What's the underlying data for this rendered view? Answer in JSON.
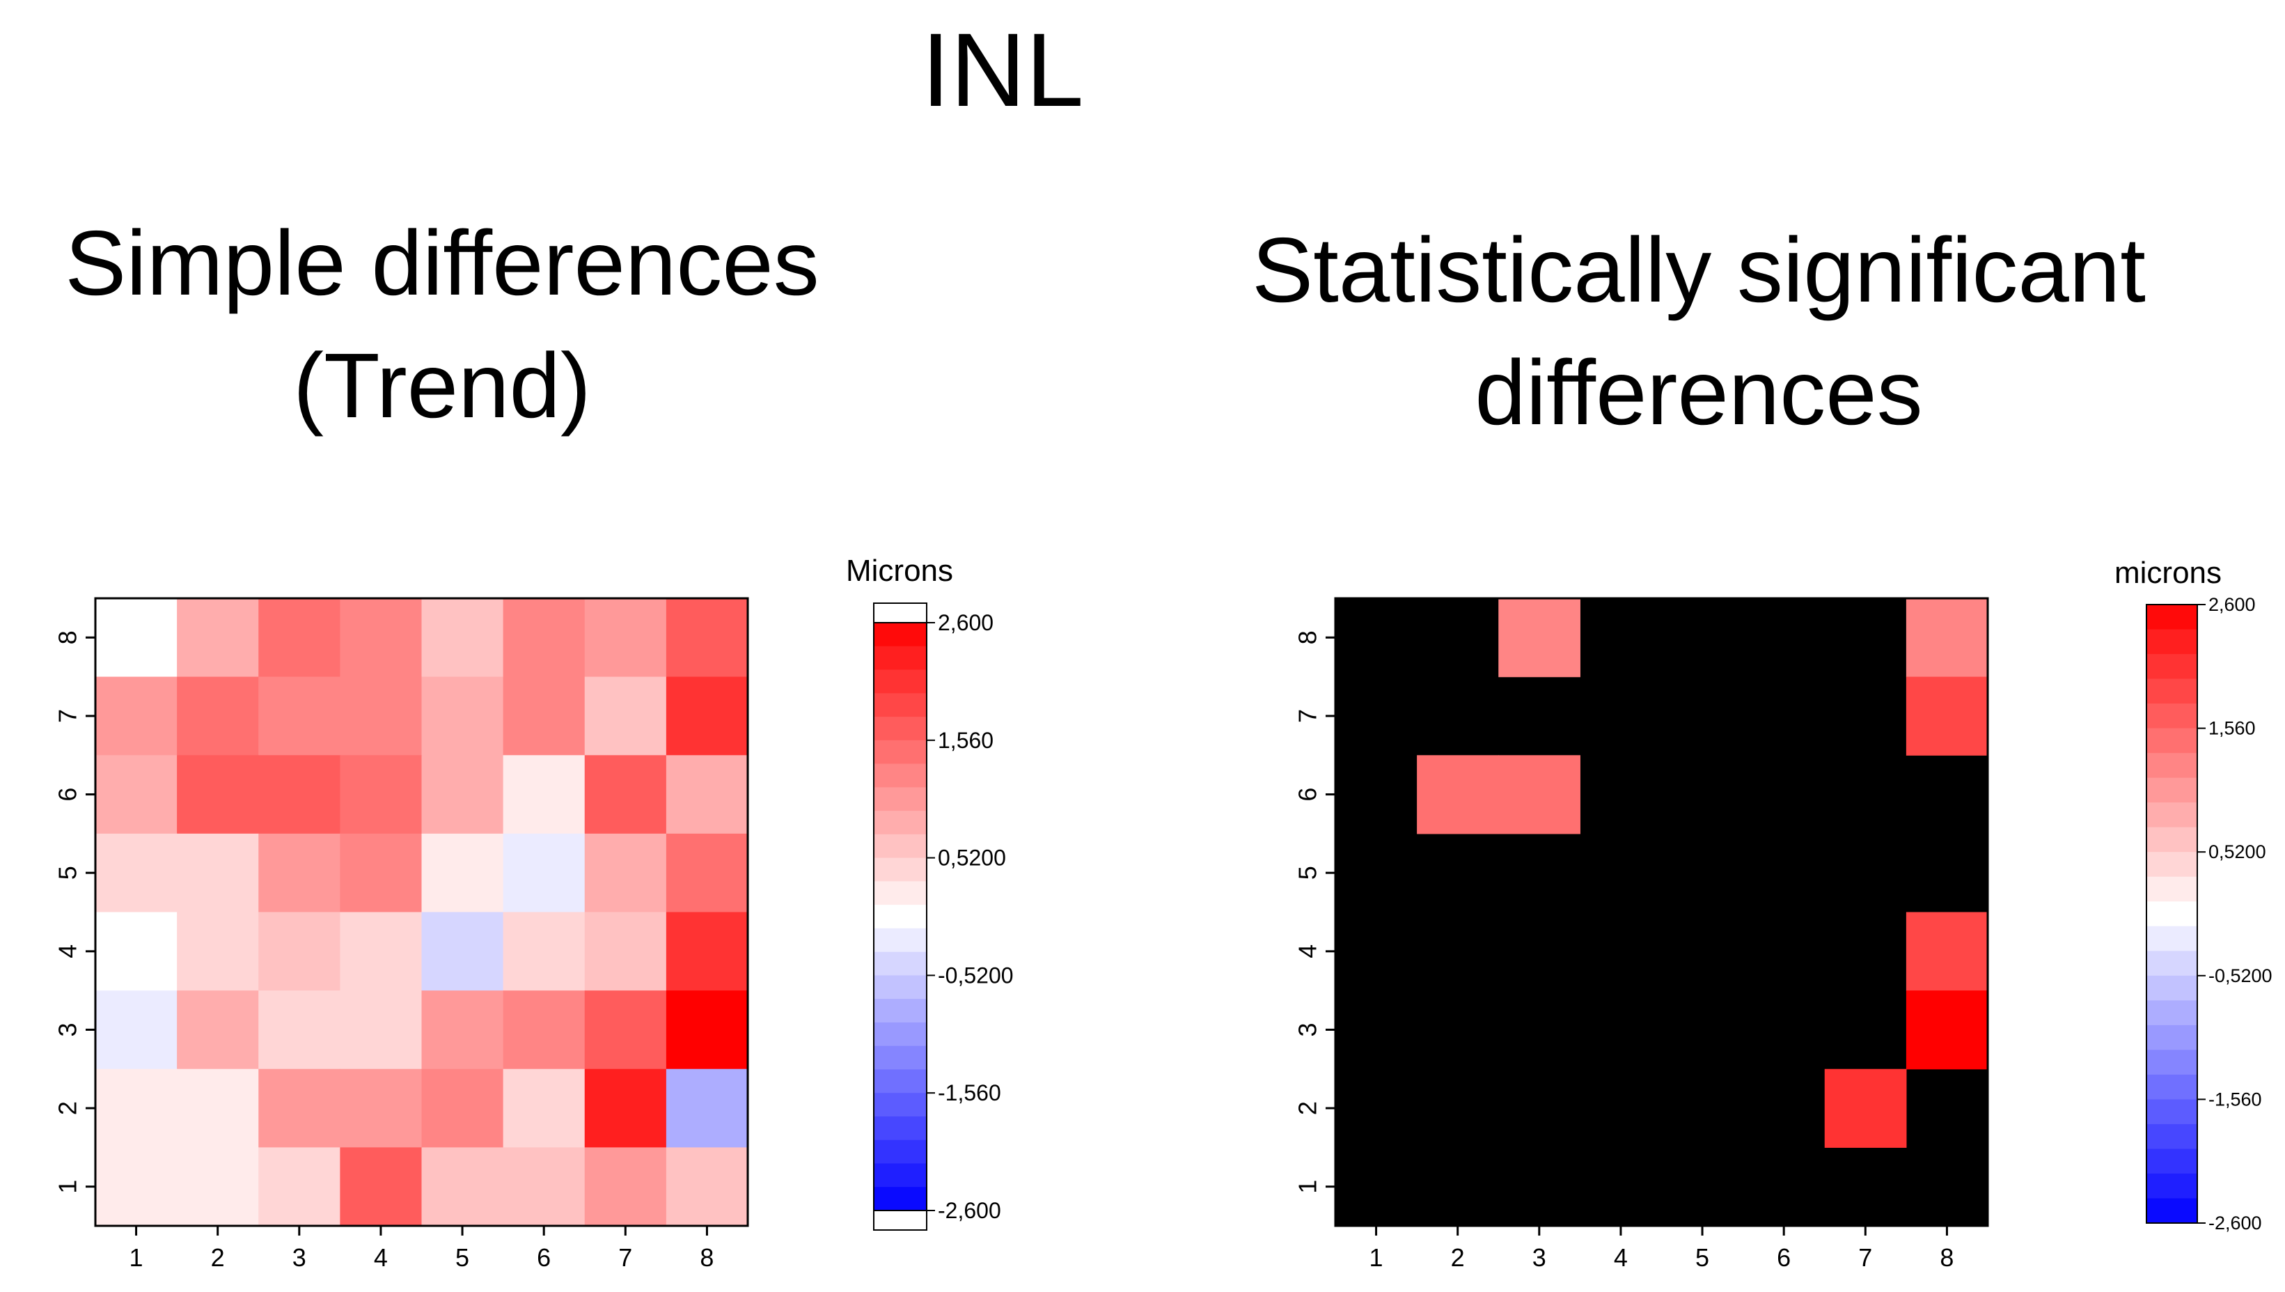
{
  "title": "INL",
  "chart_data": [
    {
      "type": "heatmap",
      "title": "Simple differences (Trend)",
      "title_lines": [
        "Simple differences",
        "(Trend)"
      ],
      "x": [
        1,
        2,
        3,
        4,
        5,
        6,
        7,
        8
      ],
      "y": [
        1,
        2,
        3,
        4,
        5,
        6,
        7,
        8
      ],
      "xlabel": "",
      "ylabel": "",
      "values_rows_top_to_bottom": [
        [
          0.05,
          0.9,
          1.55,
          1.25,
          0.7,
          1.2,
          1.1,
          1.7
        ],
        [
          1.05,
          1.4,
          1.15,
          1.15,
          0.85,
          1.35,
          0.55,
          2.05
        ],
        [
          0.75,
          1.75,
          1.75,
          1.55,
          0.85,
          0.25,
          1.75,
          0.9
        ],
        [
          0.35,
          0.35,
          1.0,
          1.3,
          0.2,
          -0.12,
          0.8,
          1.45
        ],
        [
          0.05,
          0.35,
          0.6,
          0.35,
          -0.4,
          0.45,
          0.7,
          2.1
        ],
        [
          -0.12,
          0.85,
          0.35,
          0.35,
          1.05,
          1.35,
          1.75,
          2.6
        ],
        [
          0.2,
          0.2,
          1.05,
          1.05,
          1.25,
          0.45,
          2.3,
          -0.9
        ],
        [
          0.12,
          0.12,
          0.45,
          1.75,
          0.65,
          0.65,
          1.0,
          0.65
        ]
      ],
      "colorbar": {
        "label": "Microns",
        "range": [
          -2.6,
          2.6
        ],
        "ticks": [
          "2,600",
          "1,560",
          "0,5200",
          "-0,5200",
          "-1,560",
          "-2,600"
        ]
      }
    },
    {
      "type": "heatmap",
      "title": "Statistically significant differences",
      "title_lines": [
        "Statistically significant",
        "differences"
      ],
      "x": [
        1,
        2,
        3,
        4,
        5,
        6,
        7,
        8
      ],
      "y": [
        1,
        2,
        3,
        4,
        5,
        6,
        7,
        8
      ],
      "xlabel": "",
      "ylabel": "",
      "non_significant_color": "#000000",
      "values_rows_top_to_bottom": [
        [
          null,
          null,
          1.15,
          null,
          null,
          null,
          null,
          1.3
        ],
        [
          null,
          null,
          null,
          null,
          null,
          null,
          null,
          1.85
        ],
        [
          null,
          1.4,
          1.4,
          null,
          null,
          null,
          null,
          null
        ],
        [
          null,
          null,
          null,
          null,
          null,
          null,
          null,
          null
        ],
        [
          null,
          null,
          null,
          null,
          null,
          null,
          null,
          1.85
        ],
        [
          null,
          null,
          null,
          null,
          null,
          null,
          null,
          2.6
        ],
        [
          null,
          null,
          null,
          null,
          null,
          null,
          2.05,
          null
        ],
        [
          null,
          null,
          null,
          null,
          null,
          null,
          null,
          null
        ]
      ],
      "colorbar": {
        "label": "microns",
        "range": [
          -2.6,
          2.6
        ],
        "ticks": [
          "2,600",
          "1,560",
          "0,5200",
          "-0,5200",
          "-1,560",
          "-2,600"
        ]
      }
    }
  ]
}
